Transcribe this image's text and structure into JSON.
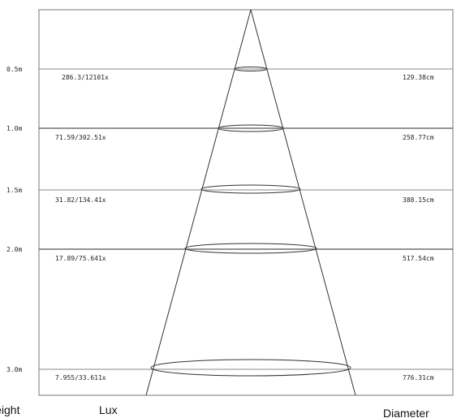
{
  "rows": [
    {
      "height": "0.5m",
      "lux": "286.3/12101x",
      "diameter": "129.38cm"
    },
    {
      "height": "1.0m",
      "lux": "71.59/302.51x",
      "diameter": "258.77cm"
    },
    {
      "height": "1.5m",
      "lux": "31.82/134.41x",
      "diameter": "388.15cm"
    },
    {
      "height": "2.0m",
      "lux": "17.89/75.641x",
      "diameter": "517.54cm"
    },
    {
      "height": "3.0m",
      "lux": "7.955/33.611x",
      "diameter": "776.31cm"
    }
  ],
  "footer": {
    "height_label": "Height",
    "lux_label": "Lux",
    "diameter_label": "Diameter"
  }
}
